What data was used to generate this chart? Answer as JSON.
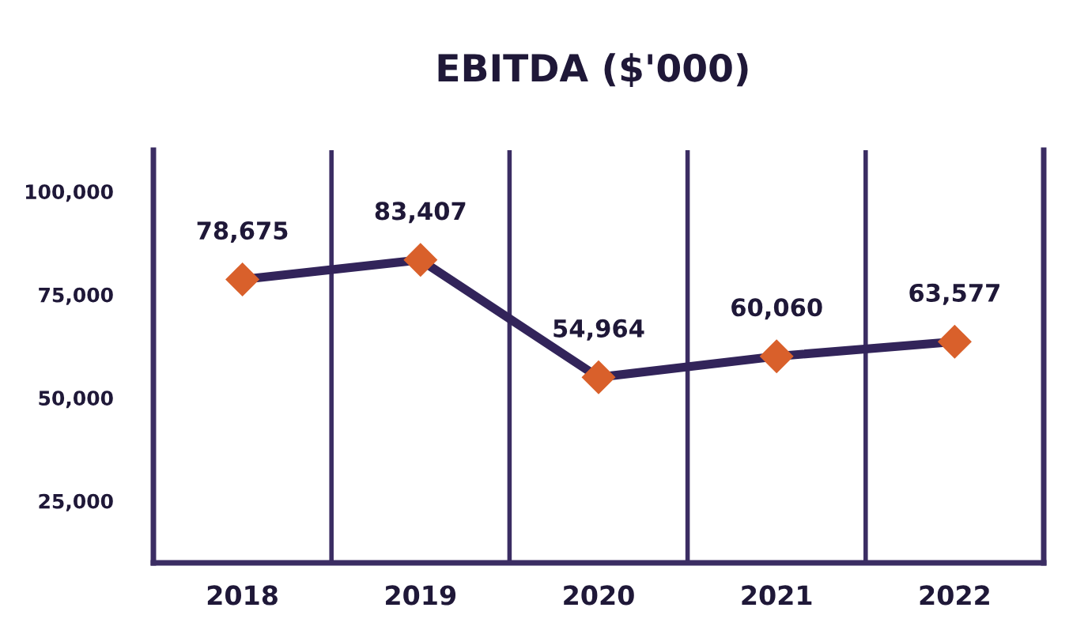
{
  "chart_data": {
    "type": "line",
    "title": "EBITDA ($'000)",
    "categories": [
      "2018",
      "2019",
      "2020",
      "2021",
      "2022"
    ],
    "series": [
      {
        "color": "#32245a",
        "colors": [
          "#d9602b",
          "#d9602b",
          "#d9602b",
          "#d9602b",
          "#d9602b"
        ],
        "values": [
          78675,
          83407,
          54964,
          60060,
          63577
        ],
        "value_labels": [
          "78,675",
          "83,407",
          "54,964",
          "60,060",
          "63,577"
        ]
      }
    ],
    "ylim": [
      10000,
      110000
    ],
    "yticks": [
      {
        "value": 25000,
        "label": "25,000"
      },
      {
        "value": 50000,
        "label": "50,000"
      },
      {
        "value": 75000,
        "label": "75,000"
      },
      {
        "value": 100000,
        "label": "100,000"
      }
    ],
    "grid": "x",
    "marker": "diamond",
    "line_style": "solid"
  }
}
